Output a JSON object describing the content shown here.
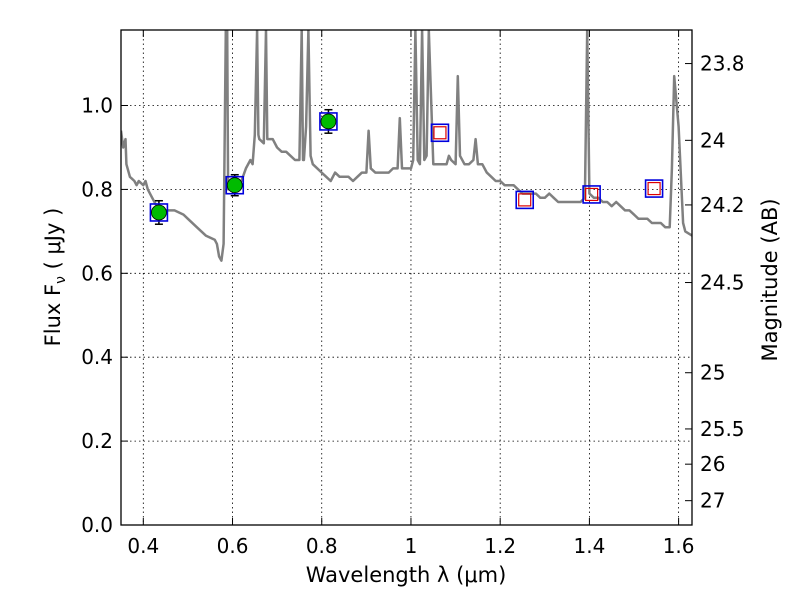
{
  "chart_data": {
    "type": "scatter",
    "xlabel": "Wavelength  λ (μm)",
    "ylabel": "Flux  F",
    "ylabel_sub": "ν",
    "ylabel_unit": "  ( μJy )",
    "y2label": "Magnitude (AB)",
    "xlim": [
      0.35,
      1.63
    ],
    "ylim": [
      0.0,
      1.18
    ],
    "x_ticks": [
      0.4,
      0.6,
      0.8,
      1.0,
      1.2,
      1.4,
      1.6
    ],
    "x_tick_labels": [
      "0.4",
      "0.6",
      "0.8",
      "1",
      "1.2",
      "1.4",
      "1.6"
    ],
    "y_ticks": [
      0.0,
      0.2,
      0.4,
      0.6,
      0.8,
      1.0
    ],
    "y_tick_labels": [
      "0.0",
      "0.2",
      "0.4",
      "0.6",
      "0.8",
      "1.0"
    ],
    "y2_ticks": [
      {
        "label": "23.8",
        "flux": 1.1
      },
      {
        "label": "24",
        "flux": 0.917
      },
      {
        "label": "24.2",
        "flux": 0.763
      },
      {
        "label": "24.5",
        "flux": 0.578
      },
      {
        "label": "25",
        "flux": 0.363
      },
      {
        "label": "25.5",
        "flux": 0.229
      },
      {
        "label": "26",
        "flux": 0.145
      },
      {
        "label": "27",
        "flux": 0.058
      }
    ],
    "grid": true,
    "colors": {
      "spectrum": "#808080",
      "observed_fill": "#00bb00",
      "model_box": "#0000dd",
      "upper_box": "#dd0000",
      "errorbar": "#000000"
    },
    "series": [
      {
        "kind": "spectrum",
        "points": [
          [
            0.35,
            0.94
          ],
          [
            0.355,
            0.9
          ],
          [
            0.36,
            0.92
          ],
          [
            0.362,
            0.86
          ],
          [
            0.37,
            0.83
          ],
          [
            0.38,
            0.82
          ],
          [
            0.385,
            0.81
          ],
          [
            0.39,
            0.82
          ],
          [
            0.4,
            0.81
          ],
          [
            0.405,
            0.82
          ],
          [
            0.41,
            0.8
          ],
          [
            0.42,
            0.78
          ],
          [
            0.43,
            0.76
          ],
          [
            0.44,
            0.75
          ],
          [
            0.45,
            0.75
          ],
          [
            0.47,
            0.75
          ],
          [
            0.49,
            0.74
          ],
          [
            0.5,
            0.73
          ],
          [
            0.52,
            0.71
          ],
          [
            0.54,
            0.69
          ],
          [
            0.56,
            0.68
          ],
          [
            0.565,
            0.67
          ],
          [
            0.57,
            0.64
          ],
          [
            0.575,
            0.63
          ],
          [
            0.58,
            0.67
          ],
          [
            0.585,
            1.18
          ],
          [
            0.588,
            1.18
          ],
          [
            0.59,
            0.8
          ],
          [
            0.595,
            0.8
          ],
          [
            0.6,
            0.81
          ],
          [
            0.61,
            0.82
          ],
          [
            0.62,
            0.82
          ],
          [
            0.63,
            0.85
          ],
          [
            0.64,
            0.87
          ],
          [
            0.645,
            0.86
          ],
          [
            0.65,
            0.93
          ],
          [
            0.655,
            1.18
          ],
          [
            0.658,
            0.93
          ],
          [
            0.66,
            0.92
          ],
          [
            0.67,
            0.91
          ],
          [
            0.675,
            1.18
          ],
          [
            0.678,
            0.92
          ],
          [
            0.69,
            0.92
          ],
          [
            0.7,
            0.9
          ],
          [
            0.71,
            0.89
          ],
          [
            0.72,
            0.89
          ],
          [
            0.73,
            0.88
          ],
          [
            0.74,
            0.87
          ],
          [
            0.75,
            0.87
          ],
          [
            0.755,
            1.18
          ],
          [
            0.758,
            0.87
          ],
          [
            0.76,
            0.87
          ],
          [
            0.765,
            0.95
          ],
          [
            0.77,
            1.18
          ],
          [
            0.775,
            0.88
          ],
          [
            0.78,
            0.86
          ],
          [
            0.79,
            0.85
          ],
          [
            0.8,
            0.84
          ],
          [
            0.81,
            0.83
          ],
          [
            0.82,
            0.82
          ],
          [
            0.83,
            0.84
          ],
          [
            0.84,
            0.83
          ],
          [
            0.85,
            0.83
          ],
          [
            0.86,
            0.83
          ],
          [
            0.87,
            0.82
          ],
          [
            0.88,
            0.83
          ],
          [
            0.89,
            0.84
          ],
          [
            0.9,
            0.84
          ],
          [
            0.905,
            0.94
          ],
          [
            0.91,
            0.85
          ],
          [
            0.92,
            0.84
          ],
          [
            0.93,
            0.84
          ],
          [
            0.94,
            0.84
          ],
          [
            0.95,
            0.84
          ],
          [
            0.96,
            0.85
          ],
          [
            0.97,
            0.85
          ],
          [
            0.975,
            0.97
          ],
          [
            0.98,
            0.85
          ],
          [
            0.99,
            0.85
          ],
          [
            1.0,
            0.85
          ],
          [
            1.005,
            0.87
          ],
          [
            1.01,
            1.18
          ],
          [
            1.015,
            0.87
          ],
          [
            1.02,
            0.86
          ],
          [
            1.025,
            1.18
          ],
          [
            1.03,
            0.87
          ],
          [
            1.035,
            0.88
          ],
          [
            1.04,
            1.18
          ],
          [
            1.05,
            0.86
          ],
          [
            1.06,
            0.86
          ],
          [
            1.07,
            0.86
          ],
          [
            1.08,
            0.86
          ],
          [
            1.085,
            0.88
          ],
          [
            1.09,
            0.87
          ],
          [
            1.1,
            0.86
          ],
          [
            1.105,
            1.07
          ],
          [
            1.11,
            0.88
          ],
          [
            1.12,
            0.86
          ],
          [
            1.13,
            0.86
          ],
          [
            1.14,
            0.87
          ],
          [
            1.145,
            0.92
          ],
          [
            1.15,
            0.86
          ],
          [
            1.16,
            0.86
          ],
          [
            1.17,
            0.84
          ],
          [
            1.18,
            0.83
          ],
          [
            1.19,
            0.82
          ],
          [
            1.2,
            0.82
          ],
          [
            1.21,
            0.81
          ],
          [
            1.22,
            0.81
          ],
          [
            1.23,
            0.81
          ],
          [
            1.24,
            0.8
          ],
          [
            1.25,
            0.79
          ],
          [
            1.26,
            0.79
          ],
          [
            1.27,
            0.79
          ],
          [
            1.28,
            0.79
          ],
          [
            1.29,
            0.78
          ],
          [
            1.3,
            0.78
          ],
          [
            1.31,
            0.79
          ],
          [
            1.32,
            0.78
          ],
          [
            1.33,
            0.77
          ],
          [
            1.34,
            0.77
          ],
          [
            1.35,
            0.77
          ],
          [
            1.36,
            0.77
          ],
          [
            1.37,
            0.77
          ],
          [
            1.38,
            0.77
          ],
          [
            1.39,
            0.78
          ],
          [
            1.395,
            1.18
          ],
          [
            1.4,
            0.79
          ],
          [
            1.41,
            0.78
          ],
          [
            1.42,
            0.78
          ],
          [
            1.43,
            0.77
          ],
          [
            1.44,
            0.77
          ],
          [
            1.45,
            0.76
          ],
          [
            1.46,
            0.77
          ],
          [
            1.47,
            0.76
          ],
          [
            1.48,
            0.75
          ],
          [
            1.49,
            0.75
          ],
          [
            1.5,
            0.74
          ],
          [
            1.51,
            0.73
          ],
          [
            1.52,
            0.73
          ],
          [
            1.53,
            0.73
          ],
          [
            1.54,
            0.72
          ],
          [
            1.55,
            0.72
          ],
          [
            1.56,
            0.72
          ],
          [
            1.57,
            0.71
          ],
          [
            1.58,
            0.71
          ],
          [
            1.585,
            0.85
          ],
          [
            1.59,
            1.07
          ],
          [
            1.6,
            0.95
          ],
          [
            1.61,
            0.72
          ],
          [
            1.615,
            0.7
          ],
          [
            1.63,
            0.69
          ]
        ]
      },
      {
        "kind": "observed",
        "points": [
          {
            "x": 0.435,
            "y": 0.745,
            "yerr": 0.028
          },
          {
            "x": 0.605,
            "y": 0.81,
            "yerr": 0.025
          },
          {
            "x": 0.815,
            "y": 0.962,
            "yerr": 0.028
          }
        ]
      },
      {
        "kind": "model",
        "points": [
          {
            "x": 0.435,
            "y": 0.745
          },
          {
            "x": 0.605,
            "y": 0.81
          },
          {
            "x": 0.815,
            "y": 0.962
          },
          {
            "x": 1.065,
            "y": 0.935
          },
          {
            "x": 1.255,
            "y": 0.775
          },
          {
            "x": 1.405,
            "y": 0.788
          },
          {
            "x": 1.545,
            "y": 0.802
          }
        ]
      },
      {
        "kind": "upper",
        "points": [
          {
            "x": 1.065,
            "y": 0.935
          },
          {
            "x": 1.255,
            "y": 0.775
          },
          {
            "x": 1.405,
            "y": 0.788
          },
          {
            "x": 1.545,
            "y": 0.802
          }
        ]
      }
    ]
  }
}
